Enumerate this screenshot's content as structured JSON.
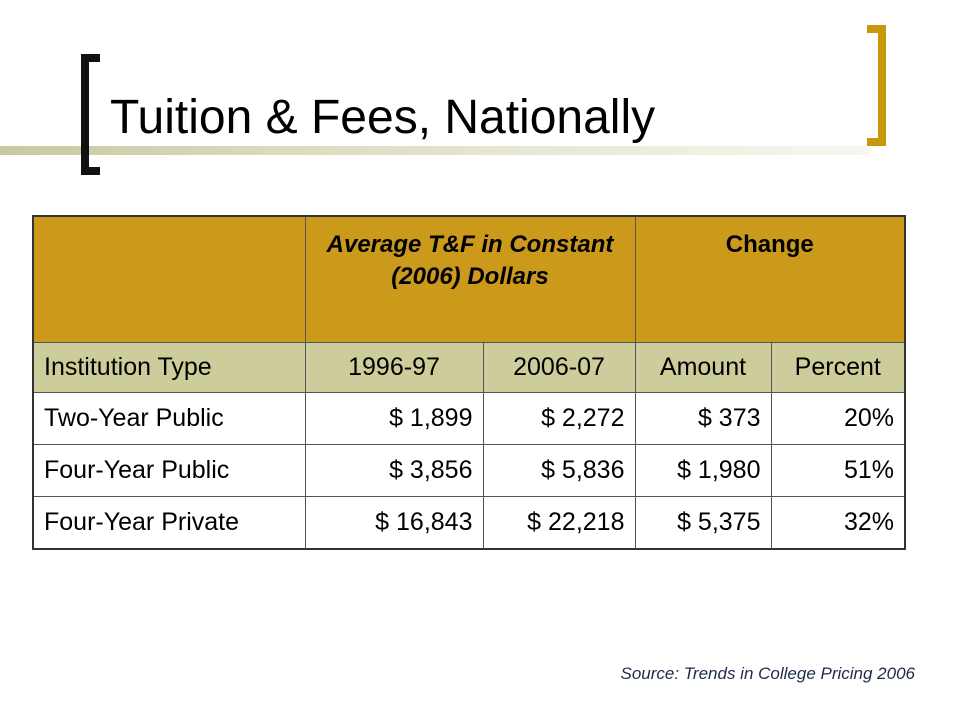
{
  "slide": {
    "title": "Tuition & Fees, Nationally",
    "source": "Source: Trends in College Pricing 2006"
  },
  "table": {
    "header_top": {
      "blank": "",
      "tf_group": "Average T&F in Constant (2006) Dollars",
      "change_group": "Change"
    },
    "header_sub": [
      "Institution Type",
      "1996-97",
      "2006-07",
      "Amount",
      "Percent"
    ],
    "rows": [
      [
        "Two-Year Public",
        "$ 1,899",
        "$ 2,272",
        "$ 373",
        "20%"
      ],
      [
        "Four-Year Public",
        "$ 3,856",
        "$ 5,836",
        "$ 1,980",
        "51%"
      ],
      [
        "Four-Year Private",
        "$ 16,843",
        "$ 22,218",
        "$ 5,375",
        "32%"
      ]
    ]
  },
  "colors": {
    "header_gold": "#cc9a1a",
    "subheader_khaki": "#cdcd9b",
    "bracket_gold": "#c8980c"
  }
}
